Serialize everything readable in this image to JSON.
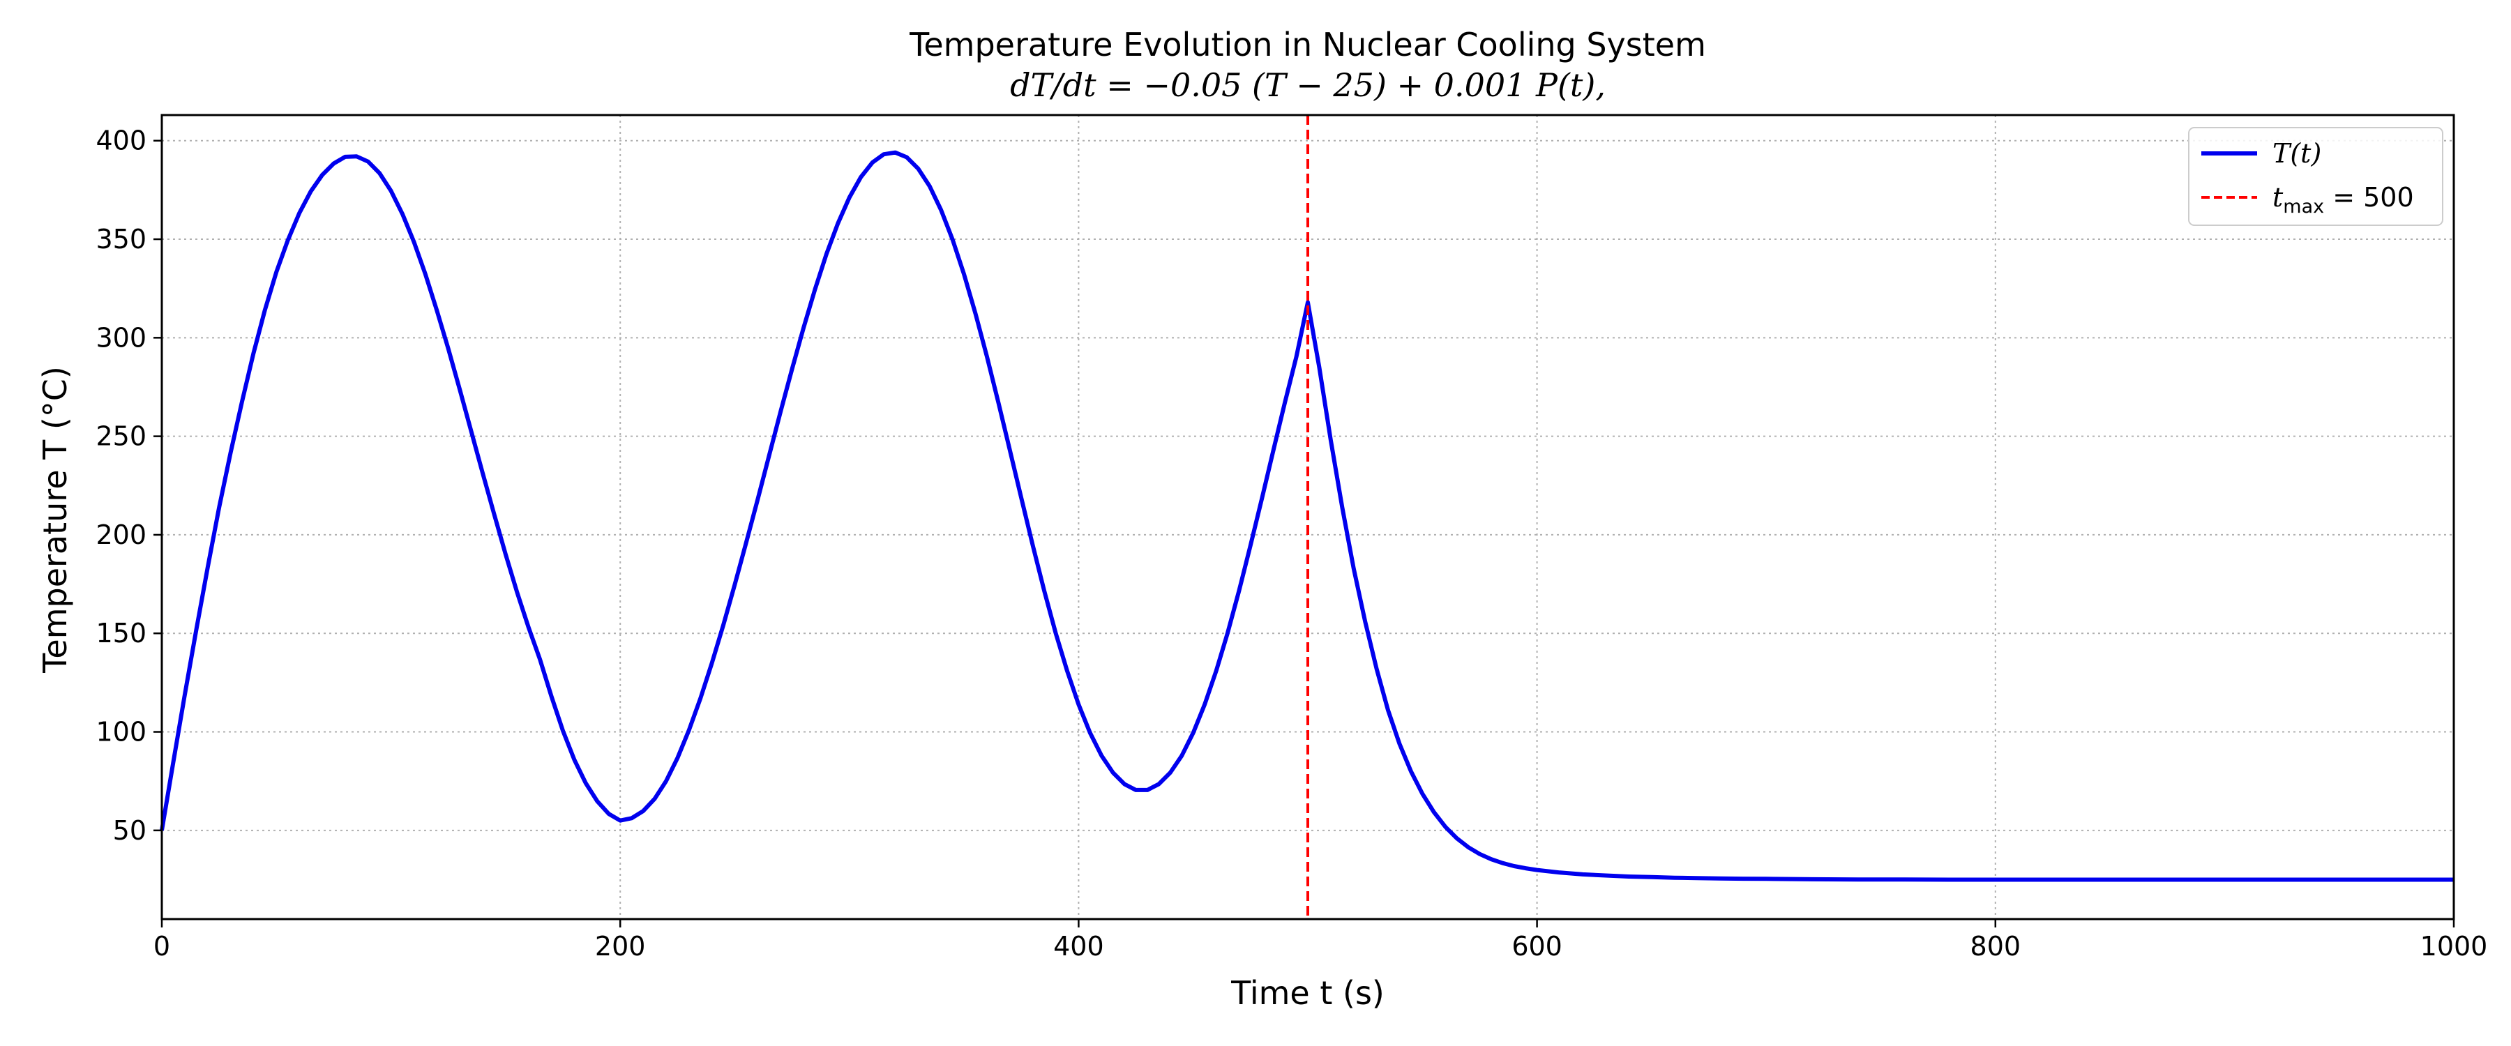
{
  "chart_data": {
    "type": "line",
    "title": "Temperature Evolution in Nuclear Cooling System",
    "subtitle": "dT/dt = −0.05 (T − 25) + 0.001 P(t),",
    "xlabel": "Time t (s)",
    "ylabel": "Temperature T (°C)",
    "xlim": [
      0,
      1000
    ],
    "ylim": [
      5,
      413
    ],
    "grid": true,
    "legend_position": "top-right",
    "x_ticks": [
      0,
      200,
      400,
      600,
      800,
      1000
    ],
    "y_ticks": [
      50,
      100,
      150,
      200,
      250,
      300,
      350,
      400
    ],
    "series": [
      {
        "name": "T(t)",
        "color": "#0000ee",
        "x": [
          0,
          5,
          10,
          15,
          20,
          25,
          30,
          35,
          40,
          45,
          50,
          55,
          60,
          65,
          70,
          75,
          80,
          85,
          90,
          95,
          100,
          105,
          110,
          115,
          120,
          125,
          130,
          135,
          140,
          145,
          150,
          155,
          160,
          165,
          170,
          175,
          180,
          185,
          190,
          195,
          200,
          205,
          210,
          215,
          220,
          225,
          230,
          235,
          240,
          245,
          250,
          255,
          260,
          265,
          270,
          275,
          280,
          285,
          290,
          295,
          300,
          305,
          310,
          315,
          320,
          325,
          330,
          335,
          340,
          345,
          350,
          355,
          360,
          365,
          370,
          375,
          380,
          385,
          390,
          395,
          400,
          405,
          410,
          415,
          420,
          425,
          430,
          435,
          440,
          445,
          450,
          455,
          460,
          465,
          470,
          475,
          480,
          485,
          490,
          495,
          500,
          505,
          510,
          515,
          520,
          525,
          530,
          535,
          540,
          545,
          550,
          555,
          560,
          565,
          570,
          575,
          580,
          585,
          590,
          595,
          600,
          610,
          620,
          630,
          640,
          650,
          660,
          670,
          680,
          690,
          700,
          720,
          740,
          760,
          780,
          800,
          850,
          900,
          950,
          1000
        ],
        "values": [
          50.0,
          84.5,
          118.8,
          151.6,
          183.3,
          213.8,
          241.7,
          267.6,
          292.1,
          314.2,
          333.4,
          349.5,
          363.3,
          374.3,
          382.6,
          388.4,
          391.8,
          392.0,
          389.4,
          383.5,
          374.5,
          362.8,
          348.6,
          332.2,
          313.9,
          294.3,
          273.7,
          252.5,
          231.3,
          210.4,
          190.1,
          170.9,
          153.0,
          136.7,
          118.0,
          100.6,
          85.8,
          73.9,
          64.8,
          58.4,
          55.0,
          56.2,
          59.8,
          66.0,
          75.0,
          86.8,
          100.9,
          117.0,
          134.9,
          154.3,
          174.8,
          196.2,
          218.1,
          240.4,
          262.6,
          284.3,
          305.1,
          324.6,
          342.5,
          358.1,
          371.2,
          381.5,
          388.9,
          393.1,
          394.0,
          391.6,
          385.8,
          376.9,
          364.8,
          349.8,
          332.2,
          312.3,
          290.4,
          267.1,
          243.0,
          218.6,
          194.6,
          171.6,
          150.2,
          130.9,
          113.9,
          99.5,
          87.9,
          79.3,
          73.5,
          70.5,
          70.5,
          73.5,
          79.3,
          87.9,
          99.5,
          113.9,
          130.9,
          150.2,
          171.6,
          194.6,
          218.6,
          243.0,
          267.1,
          290.4,
          318.0,
          285.0,
          248.0,
          214.0,
          183.0,
          156.0,
          132.0,
          111.0,
          94.0,
          80.0,
          68.6,
          59.3,
          51.8,
          46.0,
          41.5,
          38.0,
          35.4,
          33.4,
          31.9,
          30.8,
          29.9,
          28.6,
          27.7,
          27.1,
          26.6,
          26.3,
          26.0,
          25.8,
          25.6,
          25.5,
          25.4,
          25.2,
          25.1,
          25.1,
          25.0,
          25.0,
          25.0,
          25.0,
          25.0,
          25.0
        ],
        "overrides_note": ""
      },
      {
        "name": "t_max = 500",
        "color": "#ff0000",
        "style": "dashed",
        "vertical_line_x": 500
      }
    ],
    "legend": [
      {
        "label_main": "T",
        "label_rest": "(t)",
        "style": "solid",
        "color": "#0000ee"
      },
      {
        "label_main": "t",
        "label_sub": "max",
        "label_rest": " = 500",
        "style": "dashed",
        "color": "#ff0000"
      }
    ]
  }
}
